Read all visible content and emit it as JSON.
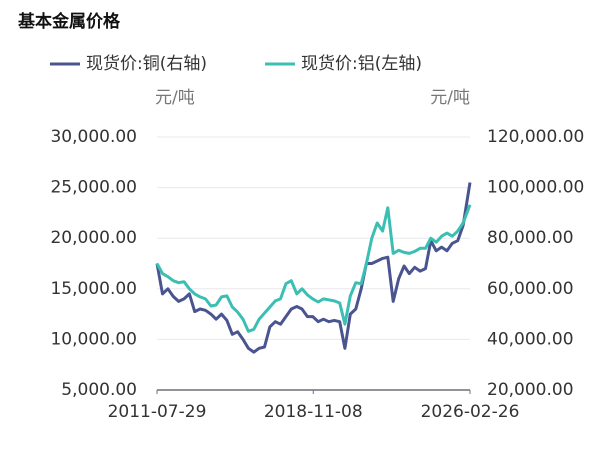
{
  "chart_data": {
    "type": "line",
    "title": "基本金属价格",
    "y_label": "元/吨",
    "y2_label": "元/吨",
    "x": [
      "2011-07-29",
      "2011-10-31",
      "2012-01-31",
      "2012-04-30",
      "2012-07-31",
      "2012-10-31",
      "2013-01-31",
      "2013-04-30",
      "2013-07-31",
      "2013-10-31",
      "2014-01-31",
      "2014-04-30",
      "2014-07-31",
      "2014-10-31",
      "2015-01-31",
      "2015-04-30",
      "2015-07-31",
      "2015-10-31",
      "2016-01-31",
      "2016-04-30",
      "2016-07-31",
      "2016-10-31",
      "2017-01-31",
      "2017-04-30",
      "2017-07-31",
      "2017-10-31",
      "2018-01-31",
      "2018-04-30",
      "2018-07-31",
      "2018-10-31",
      "2019-01-31",
      "2019-04-30",
      "2019-07-31",
      "2019-10-31",
      "2020-01-31",
      "2020-04-30",
      "2020-07-31",
      "2020-10-31",
      "2021-01-31",
      "2021-04-30",
      "2021-07-31",
      "2021-10-31",
      "2022-01-31",
      "2022-04-30",
      "2022-07-31",
      "2022-10-31",
      "2023-01-31",
      "2023-04-30",
      "2023-07-31",
      "2023-10-31",
      "2024-01-31",
      "2024-04-30",
      "2024-07-31",
      "2024-10-31",
      "2025-01-31",
      "2025-04-30",
      "2025-07-31",
      "2025-10-31",
      "2026-02-26"
    ],
    "series": [
      {
        "name": "现货价:铜(右轴)",
        "color": "#4a5490",
        "axis": "y2",
        "values": [
          70000,
          58000,
          60000,
          57000,
          55000,
          56000,
          58000,
          51000,
          52000,
          51500,
          50000,
          48000,
          50000,
          47500,
          42000,
          43000,
          40000,
          36500,
          35000,
          36500,
          37000,
          45000,
          47000,
          46000,
          49000,
          52000,
          53000,
          52000,
          49000,
          49000,
          47000,
          48000,
          47000,
          47500,
          47000,
          36500,
          50000,
          52000,
          60000,
          70000,
          70000,
          71000,
          72000,
          72500,
          55000,
          64000,
          69000,
          66000,
          68500,
          67000,
          68000,
          79000,
          75000,
          76500,
          75000,
          78000,
          79000,
          85000,
          102000
        ]
      },
      {
        "name": "现货价:铝(左轴)",
        "color": "#3cbfb3",
        "values": [
          17500,
          16500,
          16200,
          15800,
          15600,
          15700,
          15000,
          14500,
          14200,
          14000,
          13300,
          13400,
          14200,
          14300,
          13200,
          12700,
          12000,
          10800,
          11000,
          12000,
          12600,
          13200,
          13800,
          14000,
          15500,
          15800,
          14500,
          15000,
          14400,
          14000,
          13700,
          14000,
          13900,
          13800,
          13600,
          11500,
          14300,
          15600,
          15500,
          17500,
          20000,
          21500,
          20700,
          23000,
          18500,
          18800,
          18600,
          18500,
          18700,
          19000,
          19000,
          20000,
          19600,
          20200,
          20500,
          20200,
          20700,
          21500,
          23300
        ]
      }
    ],
    "xlim": [
      "2011-07-29",
      "2026-02-26"
    ],
    "xticks": [
      "2011-07-29",
      "2018-11-08",
      "2026-02-26"
    ],
    "ylim": [
      5000,
      30000
    ],
    "yticks": [
      {
        "value": 5000,
        "label": "5,000.00"
      },
      {
        "value": 10000,
        "label": "10,000.00"
      },
      {
        "value": 15000,
        "label": "15,000.00"
      },
      {
        "value": 20000,
        "label": "20,000.00"
      },
      {
        "value": 25000,
        "label": "25,000.00"
      },
      {
        "value": 30000,
        "label": "30,000.00"
      }
    ],
    "y2lim": [
      20000,
      120000
    ],
    "y2ticks": [
      {
        "value": 20000,
        "label": "20,000.00"
      },
      {
        "value": 40000,
        "label": "40,000.00"
      },
      {
        "value": 60000,
        "label": "60,000.00"
      },
      {
        "value": 80000,
        "label": "80,000.00"
      },
      {
        "value": 100000,
        "label": "100,000.00"
      },
      {
        "value": 120000,
        "label": "120,000.00"
      }
    ],
    "grid": true
  }
}
